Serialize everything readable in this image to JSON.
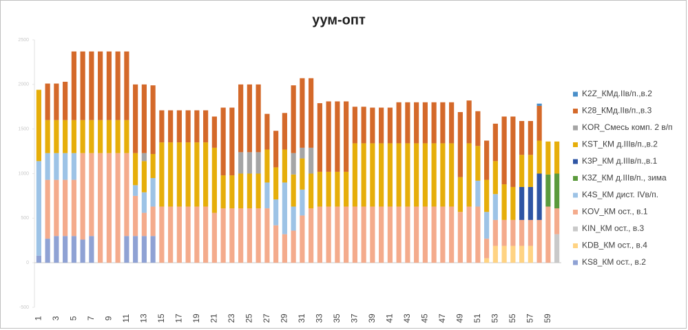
{
  "chart_data": {
    "type": "stacked_bar",
    "title": "уум-опт",
    "categories": [
      1,
      null,
      3,
      null,
      5,
      null,
      7,
      null,
      9,
      null,
      11,
      null,
      13,
      null,
      15,
      null,
      17,
      null,
      19,
      null,
      21,
      null,
      23,
      null,
      25,
      null,
      27,
      null,
      29,
      null,
      31,
      null,
      33,
      null,
      35,
      null,
      37,
      null,
      39,
      null,
      41,
      null,
      43,
      null,
      45,
      null,
      47,
      null,
      49,
      null,
      51,
      null,
      53,
      null,
      55,
      null,
      57,
      null,
      59,
      null
    ],
    "ylim": [
      -500,
      2500
    ],
    "yticks": [
      -500,
      0,
      500,
      1000,
      1500,
      2000,
      2500
    ],
    "legend": "right",
    "series": [
      {
        "name": "K2Z_КМд.IIв/п.,в.2",
        "color": "#4a8fc9",
        "values": [
          null,
          null,
          null,
          null,
          null,
          null,
          null,
          null,
          null,
          null,
          null,
          null,
          null,
          null,
          null,
          null,
          null,
          null,
          null,
          null,
          null,
          null,
          null,
          null,
          null,
          null,
          null,
          null,
          null,
          null,
          null,
          null,
          null,
          null,
          null,
          null,
          null,
          null,
          null,
          null,
          null,
          null,
          null,
          null,
          null,
          null,
          null,
          null,
          null,
          null,
          null,
          null,
          null,
          null,
          null,
          null,
          null,
          25,
          null,
          null
        ]
      },
      {
        "name": "K28_КМд.IIв/п.,в.3",
        "color": "#d4692a",
        "values": [
          null,
          410,
          410,
          430,
          770,
          770,
          770,
          770,
          770,
          770,
          770,
          770,
          770,
          770,
          360,
          360,
          360,
          360,
          360,
          360,
          350,
          760,
          760,
          760,
          760,
          760,
          400,
          410,
          410,
          760,
          780,
          780,
          770,
          790,
          790,
          790,
          410,
          410,
          400,
          400,
          400,
          460,
          460,
          460,
          460,
          460,
          460,
          460,
          730,
          480,
          390,
          440,
          420,
          760,
          790,
          380,
          380,
          390,
          null,
          null
        ]
      },
      {
        "name": "KOR_Смесь комп. 2 в/п",
        "color": "#a5a5a5",
        "values": [
          null,
          null,
          null,
          null,
          null,
          null,
          null,
          null,
          null,
          null,
          null,
          null,
          90,
          null,
          null,
          null,
          null,
          null,
          null,
          null,
          null,
          null,
          null,
          240,
          240,
          240,
          null,
          null,
          null,
          240,
          120,
          290,
          null,
          null,
          null,
          null,
          null,
          null,
          null,
          null,
          null,
          null,
          null,
          null,
          null,
          null,
          null,
          null,
          null,
          null,
          null,
          null,
          null,
          null,
          null,
          null,
          null,
          null,
          null,
          null
        ]
      },
      {
        "name": "KST_КМ д.IIIв/п.,в.2",
        "color": "#e6ae0a",
        "values": [
          800,
          370,
          370,
          370,
          370,
          370,
          370,
          370,
          370,
          370,
          370,
          360,
          350,
          270,
          720,
          720,
          720,
          720,
          720,
          720,
          730,
          370,
          370,
          390,
          390,
          390,
          370,
          360,
          370,
          360,
          350,
          390,
          390,
          390,
          390,
          390,
          710,
          710,
          710,
          710,
          710,
          710,
          710,
          710,
          710,
          710,
          710,
          710,
          390,
          710,
          390,
          360,
          370,
          400,
          370,
          360,
          360,
          370,
          370,
          360
        ]
      },
      {
        "name": "K3P_КМ д.IIIв/п.,в.1",
        "color": "#2f55a4",
        "values": [
          null,
          null,
          null,
          null,
          null,
          null,
          null,
          null,
          null,
          null,
          null,
          null,
          null,
          null,
          null,
          null,
          null,
          null,
          null,
          null,
          null,
          null,
          null,
          null,
          null,
          null,
          null,
          null,
          null,
          null,
          null,
          null,
          null,
          null,
          null,
          null,
          null,
          null,
          null,
          null,
          null,
          null,
          null,
          null,
          null,
          null,
          null,
          null,
          null,
          null,
          null,
          null,
          null,
          null,
          null,
          370,
          370,
          520,
          null,
          null
        ]
      },
      {
        "name": "K3Z_КМ д.IIIв/п., зима",
        "color": "#5b9a3c",
        "values": [
          null,
          null,
          null,
          null,
          null,
          null,
          null,
          null,
          null,
          null,
          null,
          null,
          null,
          null,
          null,
          null,
          null,
          null,
          null,
          null,
          null,
          null,
          null,
          null,
          null,
          null,
          null,
          null,
          null,
          null,
          null,
          null,
          null,
          null,
          null,
          null,
          null,
          null,
          null,
          null,
          null,
          null,
          null,
          null,
          null,
          null,
          null,
          null,
          null,
          null,
          null,
          null,
          null,
          null,
          null,
          null,
          null,
          null,
          360,
          390
        ]
      },
      {
        "name": "K4S_КМ дист. IVв/п.",
        "color": "#9dc3e6",
        "values": [
          1060,
          300,
          300,
          300,
          300,
          null,
          null,
          null,
          null,
          null,
          null,
          120,
          230,
          320,
          null,
          null,
          null,
          null,
          null,
          null,
          null,
          null,
          null,
          null,
          null,
          null,
          290,
          290,
          580,
          270,
          290,
          null,
          null,
          null,
          null,
          null,
          null,
          null,
          null,
          null,
          null,
          null,
          null,
          null,
          null,
          null,
          null,
          null,
          null,
          null,
          290,
          300,
          290,
          null,
          null,
          null,
          null,
          null,
          null,
          null
        ]
      },
      {
        "name": "KOV_КМ ост., в.1",
        "color": "#f4ab8c",
        "values": [
          null,
          660,
          630,
          630,
          630,
          970,
          930,
          1230,
          1230,
          1230,
          930,
          450,
          260,
          330,
          630,
          630,
          630,
          630,
          630,
          630,
          560,
          610,
          610,
          610,
          610,
          610,
          610,
          420,
          320,
          360,
          530,
          610,
          630,
          630,
          630,
          630,
          630,
          630,
          630,
          630,
          630,
          630,
          630,
          630,
          630,
          630,
          630,
          630,
          570,
          630,
          630,
          220,
          290,
          290,
          290,
          290,
          290,
          480,
          630,
          290
        ]
      },
      {
        "name": "KIN_КМ ост., в.3",
        "color": "#c9c9c9",
        "values": [
          null,
          null,
          null,
          null,
          null,
          null,
          null,
          null,
          null,
          null,
          null,
          null,
          null,
          null,
          null,
          null,
          null,
          null,
          null,
          null,
          null,
          null,
          null,
          null,
          null,
          null,
          null,
          null,
          null,
          null,
          null,
          null,
          null,
          null,
          null,
          null,
          null,
          null,
          null,
          null,
          null,
          null,
          null,
          null,
          null,
          null,
          null,
          null,
          null,
          null,
          null,
          null,
          null,
          null,
          null,
          null,
          null,
          null,
          null,
          320
        ]
      },
      {
        "name": "KDB_КМ ост., в.4",
        "color": "#ffd383",
        "values": [
          null,
          null,
          null,
          null,
          null,
          null,
          null,
          null,
          null,
          null,
          null,
          null,
          null,
          null,
          null,
          null,
          null,
          null,
          null,
          null,
          null,
          null,
          null,
          null,
          null,
          null,
          null,
          null,
          null,
          null,
          null,
          null,
          null,
          null,
          null,
          null,
          null,
          null,
          null,
          null,
          null,
          null,
          null,
          null,
          null,
          null,
          null,
          null,
          null,
          null,
          null,
          50,
          190,
          190,
          190,
          190,
          190,
          null,
          null,
          null
        ]
      },
      {
        "name": "KS8_КМ ост., в.2",
        "color": "#8fa2d4",
        "values": [
          80,
          270,
          300,
          300,
          300,
          260,
          300,
          null,
          null,
          null,
          300,
          300,
          300,
          300,
          null,
          null,
          null,
          null,
          null,
          null,
          null,
          null,
          null,
          null,
          null,
          null,
          null,
          null,
          null,
          null,
          null,
          null,
          null,
          null,
          null,
          null,
          null,
          null,
          null,
          null,
          null,
          null,
          null,
          null,
          null,
          null,
          null,
          null,
          null,
          null,
          null,
          null,
          null,
          null,
          null,
          null,
          null,
          null,
          null,
          null
        ]
      }
    ]
  }
}
